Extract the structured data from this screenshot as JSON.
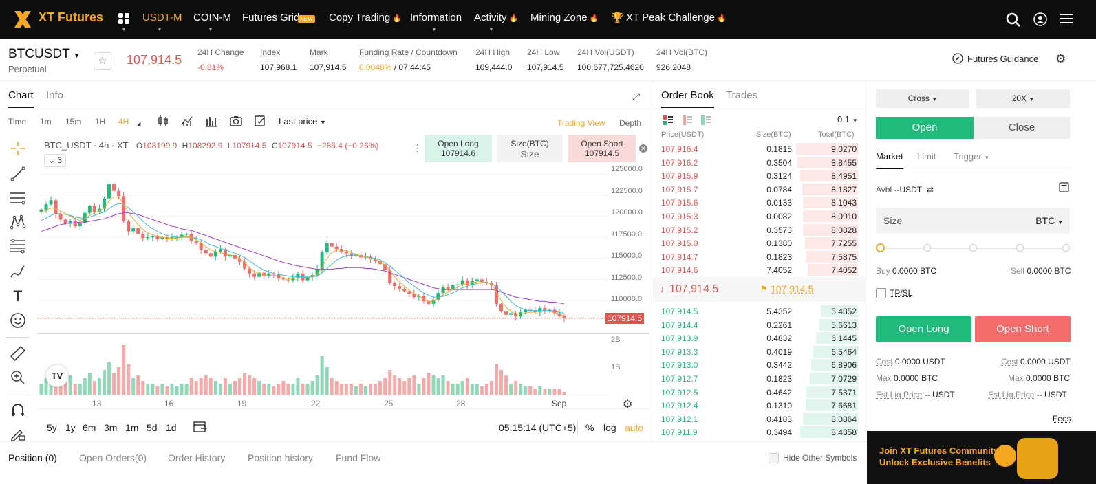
{
  "brand": {
    "logo_text": "XT Futures"
  },
  "nav": {
    "items": [
      {
        "label": "USDT-M",
        "active": true
      },
      {
        "label": "COIN-M"
      },
      {
        "label": "Futures Grid",
        "badge": "NEW"
      },
      {
        "label": "Copy Trading",
        "fire": true
      },
      {
        "label": "Information"
      },
      {
        "label": "Activity",
        "fire": true
      },
      {
        "label": "Mining Zone",
        "fire": true
      },
      {
        "label": "XT Peak Challenge",
        "fire": true
      }
    ]
  },
  "ticker": {
    "symbol": "BTCUSDT",
    "type": "Perpetual",
    "last_price": "107,914.5",
    "change_label": "24H Change",
    "change_value": "-0.81%",
    "index_label": "Index",
    "index_value": "107,968.1",
    "mark_label": "Mark",
    "mark_value": "107,914.5",
    "funding_label": "Funding Rate / Countdown",
    "funding_rate": "0.0048%",
    "funding_sep": " / ",
    "countdown": "07:44:45",
    "high_label": "24H High",
    "high_value": "109,444.0",
    "low_label": "24H Low",
    "low_value": "107,914.5",
    "volusdt_label": "24H Vol(USDT)",
    "volusdt_value": "100,677,725.4620",
    "volbtc_label": "24H Vol(BTC)",
    "volbtc_value": "926.2048",
    "guidance": "Futures Guidance"
  },
  "chart_panel": {
    "tabs": [
      "Chart",
      "Info"
    ],
    "timeframes": [
      "Time",
      "1m",
      "15m",
      "1H",
      "4H"
    ],
    "price_type": "Last price",
    "views": [
      "Trading View",
      "Depth"
    ],
    "legend": {
      "pair": "BTC_USDT · 4h · XT",
      "o": "108199.9",
      "h": "108292.9",
      "l": "107914.5",
      "c": "107914.5",
      "chg": "−285.4 (−0.26%)",
      "indicators_count": "3"
    },
    "quick": {
      "long_label": "Open Long",
      "long_price": "107914.6",
      "size_label": "Size(BTC)",
      "size_placeholder": "Size",
      "short_label": "Open Short",
      "short_price": "107914.5"
    },
    "y_ticks": [
      "125000.0",
      "122500.0",
      "120000.0",
      "117500.0",
      "115000.0",
      "112500.0",
      "110000.0"
    ],
    "last_price_tag": "107914.5",
    "vol_ticks": [
      "2B",
      "1B"
    ],
    "x_ticks": [
      "13",
      "16",
      "19",
      "22",
      "25",
      "28",
      "Sep"
    ],
    "ranges": [
      "5y",
      "1y",
      "6m",
      "3m",
      "1m",
      "5d",
      "1d"
    ],
    "clock": "05:15:14 (UTC+5)",
    "scale_opts": [
      "%",
      "log",
      "auto"
    ]
  },
  "chart_data": {
    "type": "candlestick",
    "title": "BTC_USDT · 4h · XT",
    "x_ticks": [
      "13",
      "16",
      "19",
      "22",
      "25",
      "28",
      "Sep"
    ],
    "ylim": [
      106000,
      126000
    ],
    "y_ticks": [
      125000,
      122500,
      120000,
      117500,
      115000,
      112500,
      110000
    ],
    "close": [
      120800,
      121400,
      121900,
      120200,
      119600,
      119100,
      119400,
      118800,
      119200,
      120400,
      121200,
      120500,
      120900,
      122100,
      123800,
      123000,
      122400,
      119400,
      118200,
      118600,
      117900,
      117400,
      117500,
      117600,
      117300,
      117500,
      117300,
      117500,
      117500,
      117800,
      117900,
      117100,
      116800,
      116000,
      115600,
      115200,
      115800,
      116100,
      115200,
      115400,
      115000,
      114600,
      113800,
      113200,
      112800,
      113300,
      112900,
      113200,
      113100,
      112600,
      112500,
      112400,
      112700,
      113200,
      112400,
      112800,
      113000,
      113700,
      115700,
      116800,
      116400,
      116100,
      115800,
      115600,
      115300,
      115400,
      115100,
      115200,
      114900,
      114700,
      114300,
      113600,
      112100,
      111700,
      111400,
      111100,
      110800,
      110400,
      110500,
      109900,
      109600,
      110100,
      110900,
      111600,
      111400,
      111800,
      111900,
      112400,
      111800,
      112300,
      112500,
      112200,
      112100,
      111800,
      109600,
      108700,
      108300,
      108500,
      108100,
      108600,
      108900,
      108800,
      108600,
      109100,
      108700,
      108900,
      108500,
      108200,
      107900
    ],
    "ma_fast": [
      120500,
      120700,
      121000,
      120900,
      120600,
      120300,
      120000,
      119700,
      119500,
      119700,
      120100,
      120400,
      120600,
      121000,
      121800,
      122300,
      122300,
      121400,
      120400,
      119700,
      119000,
      118400,
      118000,
      117800,
      117600,
      117500,
      117400,
      117400,
      117400,
      117500,
      117600,
      117500,
      117200,
      116800,
      116400,
      116000,
      115800,
      115700,
      115500,
      115400,
      115300,
      115000,
      114500,
      113900,
      113400,
      113200,
      113000,
      113000,
      113000,
      112900,
      112700,
      112600,
      112600,
      112700,
      112700,
      112700,
      112800,
      113100,
      114000,
      115000,
      115700,
      116000,
      116000,
      115900,
      115700,
      115500,
      115300,
      115200,
      115000,
      114900,
      114600,
      114200,
      113500,
      112800,
      112200,
      111700,
      111200,
      110800,
      110500,
      110200,
      109900,
      109900,
      110200,
      110700,
      111000,
      111300,
      111600,
      111900,
      112000,
      112100,
      112200,
      112200,
      112100,
      112000,
      111000,
      110000,
      109200,
      108700,
      108400,
      108400,
      108500,
      108600,
      108600,
      108700,
      108700,
      108700,
      108600,
      108400,
      108200
    ],
    "ma_mid": [
      119500,
      119800,
      120100,
      120300,
      120300,
      120200,
      120100,
      119900,
      119800,
      119800,
      119900,
      120100,
      120300,
      120500,
      120900,
      121300,
      121500,
      121400,
      121000,
      120500,
      120000,
      119400,
      118900,
      118500,
      118200,
      117900,
      117700,
      117600,
      117500,
      117500,
      117500,
      117500,
      117400,
      117200,
      116900,
      116600,
      116400,
      116200,
      116000,
      115800,
      115600,
      115400,
      115100,
      114700,
      114300,
      113900,
      113600,
      113400,
      113200,
      113100,
      113000,
      112900,
      112800,
      112800,
      112800,
      112800,
      112800,
      112900,
      113300,
      113800,
      114300,
      114800,
      115100,
      115300,
      115400,
      115400,
      115300,
      115200,
      115100,
      115000,
      114800,
      114500,
      114100,
      113600,
      113100,
      112600,
      112100,
      111700,
      111300,
      110900,
      110600,
      110400,
      110400,
      110500,
      110700,
      110900,
      111200,
      111500,
      111700,
      111900,
      112000,
      112100,
      112100,
      112000,
      111600,
      111100,
      110500,
      109900,
      109400,
      109100,
      108900,
      108800,
      108800,
      108800,
      108800,
      108800,
      108700,
      108600,
      108500
    ],
    "ma_slow": [
      118200,
      118400,
      118600,
      118800,
      119000,
      119100,
      119200,
      119200,
      119300,
      119300,
      119400,
      119500,
      119600,
      119700,
      119900,
      120100,
      120300,
      120400,
      120400,
      120300,
      120200,
      120000,
      119800,
      119600,
      119400,
      119200,
      119000,
      118800,
      118700,
      118500,
      118400,
      118300,
      118100,
      117900,
      117700,
      117500,
      117300,
      117100,
      116900,
      116700,
      116500,
      116300,
      116100,
      115900,
      115700,
      115500,
      115300,
      115100,
      114900,
      114700,
      114500,
      114400,
      114200,
      114100,
      114000,
      113900,
      113800,
      113700,
      113700,
      113700,
      113700,
      113800,
      113800,
      113900,
      113900,
      113900,
      113900,
      113800,
      113800,
      113700,
      113600,
      113500,
      113300,
      113100,
      112900,
      112700,
      112500,
      112300,
      112100,
      111900,
      111700,
      111500,
      111400,
      111300,
      111300,
      111300,
      111300,
      111300,
      111300,
      111300,
      111300,
      111300,
      111300,
      111300,
      111200,
      111000,
      110800,
      110600,
      110400,
      110300,
      110200,
      110100,
      110000,
      109900,
      109900,
      109800,
      109800,
      109700,
      109600
    ],
    "volume": [
      0.2,
      0.3,
      0.25,
      0.3,
      0.2,
      0.25,
      0.35,
      0.2,
      0.2,
      0.3,
      0.4,
      0.25,
      0.3,
      0.45,
      0.6,
      0.4,
      0.5,
      0.9,
      0.55,
      0.3,
      0.35,
      0.25,
      0.2,
      0.2,
      0.15,
      0.2,
      0.15,
      0.2,
      0.15,
      0.2,
      0.2,
      0.3,
      0.25,
      0.3,
      0.35,
      0.3,
      0.25,
      0.2,
      0.3,
      0.2,
      0.25,
      0.3,
      0.4,
      0.35,
      0.3,
      0.25,
      0.2,
      0.2,
      0.15,
      0.2,
      0.25,
      0.2,
      0.2,
      0.3,
      0.2,
      0.2,
      0.25,
      0.35,
      0.7,
      0.5,
      0.3,
      0.25,
      0.2,
      0.2,
      0.2,
      0.15,
      0.2,
      0.15,
      0.2,
      0.2,
      0.25,
      0.3,
      0.45,
      0.35,
      0.3,
      0.25,
      0.3,
      0.35,
      0.2,
      0.3,
      0.4,
      0.35,
      0.3,
      0.35,
      0.25,
      0.2,
      0.2,
      0.25,
      0.3,
      0.2,
      0.2,
      0.15,
      0.2,
      0.25,
      0.55,
      0.45,
      0.35,
      0.2,
      0.25,
      0.2,
      0.15,
      0.15,
      0.1,
      0.15,
      0.1,
      0.1,
      0.1,
      0.1,
      0.05
    ],
    "colors": {
      "up": "#1fba7c",
      "down": "#f36c6c",
      "ma_fast": "#f0a829",
      "ma_mid": "#3bb8d7",
      "ma_slow": "#a23bd4"
    }
  },
  "orderbook": {
    "tabs": [
      "Order Book",
      "Trades"
    ],
    "precision": "0.1",
    "headers": [
      "Price(USDT)",
      "Size(BTC)",
      "Total(BTC)"
    ],
    "asks": [
      [
        "107,916.4",
        "0.1815",
        "9.0270"
      ],
      [
        "107,916.2",
        "0.3504",
        "8.8455"
      ],
      [
        "107,915.9",
        "0.3124",
        "8.4951"
      ],
      [
        "107,915.7",
        "0.0784",
        "8.1827"
      ],
      [
        "107,915.6",
        "0.0133",
        "8.1043"
      ],
      [
        "107,915.3",
        "0.0082",
        "8.0910"
      ],
      [
        "107,915.2",
        "0.3573",
        "8.0828"
      ],
      [
        "107,915.0",
        "0.1380",
        "7.7255"
      ],
      [
        "107,914.7",
        "0.1823",
        "7.5875"
      ],
      [
        "107,914.6",
        "7.4052",
        "7.4052"
      ]
    ],
    "mid_price": "107,914.5",
    "mark_price": "107,914.5",
    "bids": [
      [
        "107,914.5",
        "5.4352",
        "5.4352"
      ],
      [
        "107,914.4",
        "0.2261",
        "5.6613"
      ],
      [
        "107,913.9",
        "0.4832",
        "6.1445"
      ],
      [
        "107,913.3",
        "0.4019",
        "6.5464"
      ],
      [
        "107,913.0",
        "0.3442",
        "6.8906"
      ],
      [
        "107,912.7",
        "0.1823",
        "7.0729"
      ],
      [
        "107,912.5",
        "0.4642",
        "7.5371"
      ],
      [
        "107,912.4",
        "0.1310",
        "7.6681"
      ],
      [
        "107,912.1",
        "0.4183",
        "8.0864"
      ],
      [
        "107,911.9",
        "0.3494",
        "8.4358"
      ]
    ],
    "ask_depth": [
      0.9,
      0.88,
      0.84,
      0.81,
      0.8,
      0.8,
      0.8,
      0.77,
      0.75,
      0.73
    ],
    "bid_depth": [
      0.54,
      0.56,
      0.61,
      0.65,
      0.68,
      0.7,
      0.75,
      0.76,
      0.8,
      0.84
    ]
  },
  "trade": {
    "margin_mode": "Cross",
    "leverage": "20X",
    "open_label": "Open",
    "close_label": "Close",
    "order_types": [
      "Market",
      "Limit",
      "Trigger"
    ],
    "avbl_label": "Avbl",
    "avbl_value": "--USDT",
    "size_placeholder": "Size",
    "size_unit": "BTC",
    "slider_pct": 0,
    "buy_label": "Buy",
    "buy_value": "0.0000 BTC",
    "sell_label": "Sell",
    "sell_value": "0.0000 BTC",
    "tpsl_label": "TP/SL",
    "long_button": "Open Long",
    "short_button": "Open Short",
    "cost_label": "Cost",
    "cost_long": "0.0000 USDT",
    "cost_short": "0.0000 USDT",
    "max_label": "Max",
    "max_long": "0.0000 BTC",
    "max_short": "0.0000 BTC",
    "liq_label": "Est.Liq.Price",
    "liq_long": "-- USDT",
    "liq_short": "-- USDT",
    "fees_label": "Fees",
    "banner_line1": "Join XT Futures Community",
    "banner_line2": "Unlock Exclusive Benefits"
  },
  "bottom": {
    "tabs": [
      "Position (0)",
      "Open Orders(0)",
      "Order History",
      "Position history",
      "Fund Flow"
    ],
    "hide_label": "Hide Other Symbols"
  }
}
